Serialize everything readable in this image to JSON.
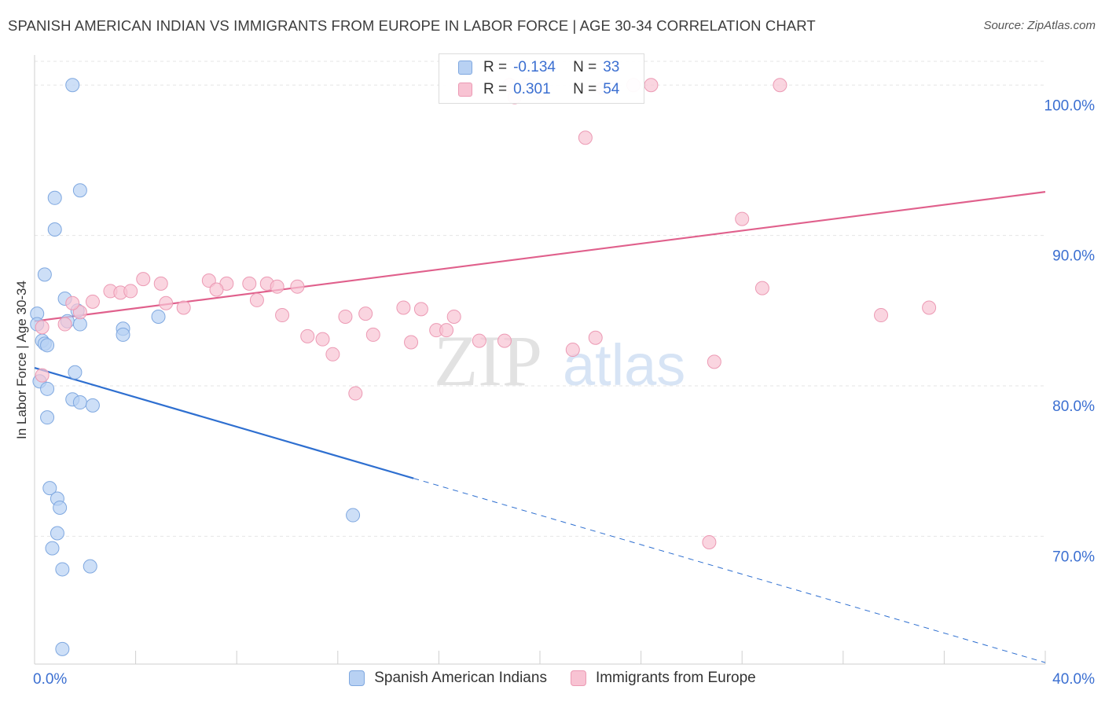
{
  "title": "SPANISH AMERICAN INDIAN VS IMMIGRANTS FROM EUROPE IN LABOR FORCE | AGE 30-34 CORRELATION CHART",
  "source": "Source: ZipAtlas.com",
  "watermark": {
    "zip": "ZIP",
    "atlas": "atlas"
  },
  "legend_top": [
    {
      "r_label": "R =",
      "r_value": "-0.134",
      "n_label": "N =",
      "n_value": "33"
    },
    {
      "r_label": "R =",
      "r_value": "0.301",
      "n_label": "N =",
      "n_value": "54"
    }
  ],
  "colors": {
    "blue_fill": "#b8d1f3",
    "blue_stroke": "#7fa8e0",
    "blue_line": "#2e6fd0",
    "pink_fill": "#f8c3d3",
    "pink_stroke": "#ec9ab4",
    "pink_line": "#e0608c",
    "axis_text": "#3b6fd1"
  },
  "chart_data": {
    "type": "scatter",
    "title": "SPANISH AMERICAN INDIAN VS IMMIGRANTS FROM EUROPE IN LABOR FORCE | AGE 30-34 CORRELATION CHART",
    "xlabel": "",
    "ylabel": "In Labor Force | Age 30-34",
    "xlim": [
      0,
      40
    ],
    "ylim": [
      61.5,
      102
    ],
    "x_tick_labels": [
      "0.0%",
      "40.0%"
    ],
    "y_ticks": [
      70,
      80,
      90,
      100
    ],
    "y_tick_labels": [
      "70.0%",
      "80.0%",
      "90.0%",
      "100.0%"
    ],
    "grid": true,
    "legend_position": "bottom",
    "series": [
      {
        "name": "Spanish American Indians",
        "color": "#b8d1f3",
        "points": [
          [
            1.5,
            100.0
          ],
          [
            0.8,
            92.5
          ],
          [
            1.8,
            93.0
          ],
          [
            0.8,
            90.4
          ],
          [
            0.4,
            87.4
          ],
          [
            1.2,
            85.8
          ],
          [
            0.1,
            84.8
          ],
          [
            1.7,
            85.0
          ],
          [
            0.1,
            84.1
          ],
          [
            1.3,
            84.3
          ],
          [
            1.8,
            84.1
          ],
          [
            3.5,
            83.8
          ],
          [
            3.5,
            83.4
          ],
          [
            4.9,
            84.6
          ],
          [
            0.3,
            83.0
          ],
          [
            0.4,
            82.8
          ],
          [
            0.5,
            82.7
          ],
          [
            1.6,
            80.9
          ],
          [
            0.2,
            80.3
          ],
          [
            0.5,
            79.8
          ],
          [
            1.5,
            79.1
          ],
          [
            1.8,
            78.9
          ],
          [
            2.3,
            78.7
          ],
          [
            0.5,
            77.9
          ],
          [
            0.6,
            73.2
          ],
          [
            0.9,
            72.5
          ],
          [
            1.0,
            71.9
          ],
          [
            12.6,
            71.4
          ],
          [
            0.9,
            70.2
          ],
          [
            0.7,
            69.2
          ],
          [
            2.2,
            68.0
          ],
          [
            1.1,
            67.8
          ],
          [
            1.1,
            62.5
          ]
        ],
        "trend": {
          "x0": 0,
          "y0": 81.2,
          "x1": 40,
          "y1": 61.6,
          "solid_until_x": 15
        }
      },
      {
        "name": "Immigrants from Europe",
        "color": "#f8c3d3",
        "points": [
          [
            18.8,
            100.0
          ],
          [
            19.5,
            100.0
          ],
          [
            23.7,
            100.0
          ],
          [
            24.4,
            100.0
          ],
          [
            29.5,
            100.0
          ],
          [
            21.8,
            96.5
          ],
          [
            28.0,
            91.1
          ],
          [
            4.3,
            87.1
          ],
          [
            5.0,
            86.8
          ],
          [
            6.9,
            87.0
          ],
          [
            7.6,
            86.8
          ],
          [
            8.5,
            86.8
          ],
          [
            9.2,
            86.8
          ],
          [
            9.6,
            86.6
          ],
          [
            10.4,
            86.6
          ],
          [
            3.0,
            86.3
          ],
          [
            3.4,
            86.2
          ],
          [
            3.8,
            86.3
          ],
          [
            7.2,
            86.4
          ],
          [
            28.8,
            86.5
          ],
          [
            2.3,
            85.6
          ],
          [
            5.2,
            85.5
          ],
          [
            5.9,
            85.2
          ],
          [
            8.8,
            85.7
          ],
          [
            14.6,
            85.2
          ],
          [
            15.3,
            85.1
          ],
          [
            35.4,
            85.2
          ],
          [
            1.8,
            84.9
          ],
          [
            9.8,
            84.7
          ],
          [
            12.3,
            84.6
          ],
          [
            13.1,
            84.8
          ],
          [
            16.6,
            84.6
          ],
          [
            33.5,
            84.7
          ],
          [
            1.2,
            84.1
          ],
          [
            0.3,
            83.9
          ],
          [
            15.9,
            83.7
          ],
          [
            16.3,
            83.7
          ],
          [
            10.8,
            83.3
          ],
          [
            11.4,
            83.1
          ],
          [
            13.4,
            83.4
          ],
          [
            14.9,
            82.9
          ],
          [
            17.6,
            83.0
          ],
          [
            18.6,
            83.0
          ],
          [
            21.3,
            82.4
          ],
          [
            22.2,
            83.2
          ],
          [
            11.8,
            82.1
          ],
          [
            26.9,
            81.6
          ],
          [
            12.7,
            79.5
          ],
          [
            26.7,
            69.6
          ],
          [
            0.3,
            80.7
          ],
          [
            19.0,
            99.2
          ],
          [
            20.0,
            99.5
          ],
          [
            22.5,
            99.8
          ],
          [
            1.5,
            85.5
          ]
        ],
        "trend": {
          "x0": 0,
          "y0": 84.3,
          "x1": 40,
          "y1": 92.9
        }
      }
    ]
  }
}
